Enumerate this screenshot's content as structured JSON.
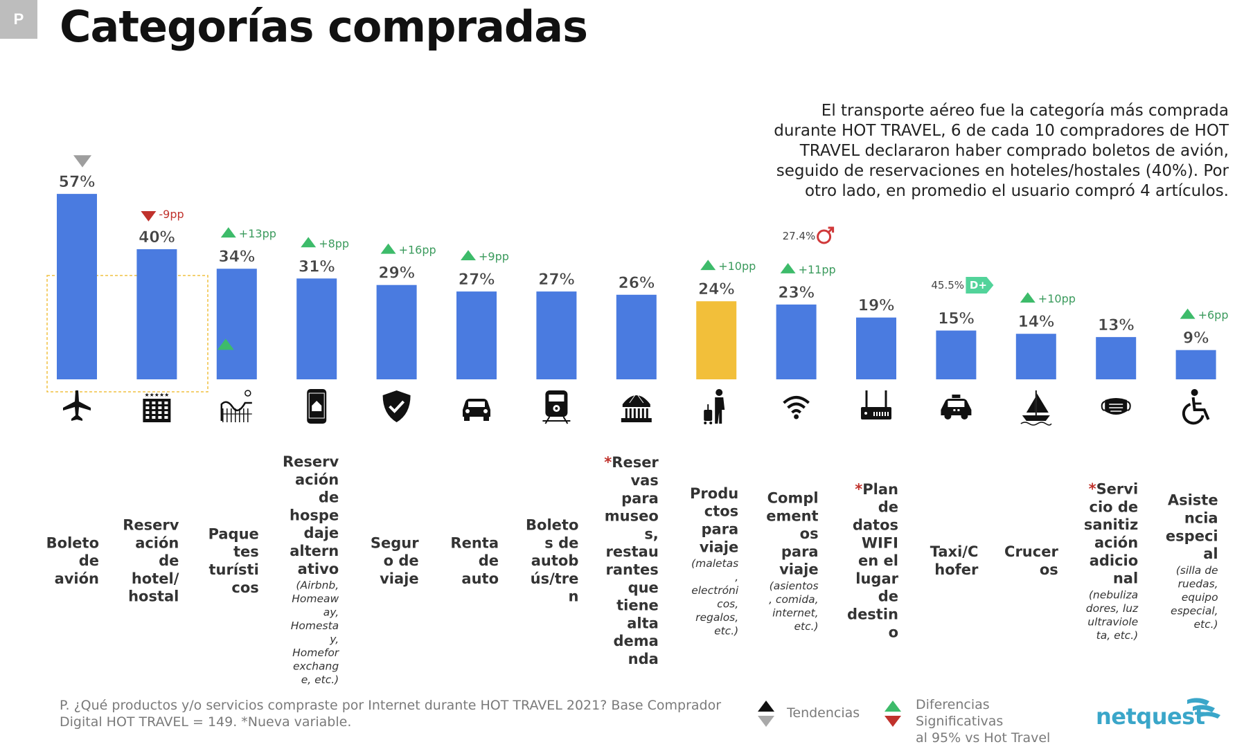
{
  "page": {
    "badge": "P",
    "title": "Categorías compradas",
    "description": "El transporte aéreo fue la categoría más comprada\ndurante HOT TRAVEL, 6 de cada 10 compradores de HOT\nTRAVEL declararon haber comprado boletos de avión,\nseguido de reservaciones en hoteles/hostales (40%). Por\notro lado, en promedio el usuario compró 4 artículos.",
    "footnote": "P. ¿Qué productos y/o servicios compraste por Internet durante HOT TRAVEL 2021? Base Comprador Digital HOT TRAVEL = 149. *Nueva variable.",
    "brand": "netquest"
  },
  "legend": {
    "trend_label": "Tendencias",
    "significance_label": "Diferencias\nSignificativas\nal 95% vs Hot Travel"
  },
  "colors": {
    "bar": "#4a7be0",
    "bar_highlight": "#f2bf3a",
    "up": "#3dbb6a",
    "down": "#c0322c",
    "trend_gray": "#9e9e9e",
    "profile_badge": "#52d39a",
    "male_symbol": "#d0393a",
    "highlight_box": "#f0c040"
  },
  "chart_data": {
    "type": "bar",
    "ylim": [
      0,
      60
    ],
    "categories": [
      "Boleto de avión",
      "Reservación de hotel/ hostal",
      "Paquetes turísticos",
      "Reservación de hospedaje alternativo",
      "Seguro de viaje",
      "Renta de auto",
      "Boletos de autobús/tren",
      "*Reservas para museos, restaurantes que tiene alta demanda",
      "Productos para viaje",
      "Complementos para viaje",
      "*Plan de datos WIFI en el lugar de destino",
      "Taxi/Chofer",
      "Cruceros",
      "*Servicio de sanitización adicional",
      "Asistencia especial"
    ],
    "label_lines": [
      [
        "Boleto",
        "de",
        "avión"
      ],
      [
        "Reserv",
        "ación",
        "de",
        "hotel/",
        "hostal"
      ],
      [
        "Paque",
        "tes",
        "turísti",
        "cos"
      ],
      [
        "Reserv",
        "ación",
        "de",
        "hospe",
        "daje",
        "altern",
        "ativo"
      ],
      [
        "Segur",
        "o de",
        "viaje"
      ],
      [
        "Renta",
        "de",
        "auto"
      ],
      [
        "Boleto",
        "s de",
        "autob",
        "ús/tre",
        "n"
      ],
      [
        "*Reser",
        "vas",
        "para",
        "museo",
        "s,",
        "restau",
        "rantes",
        "que",
        "tiene",
        "alta",
        "dema",
        "nda"
      ],
      [
        "Produ",
        "ctos",
        "para",
        "viaje"
      ],
      [
        "Compl",
        "ement",
        "os",
        "para",
        "viaje"
      ],
      [
        "*Plan",
        "de",
        "datos",
        "WIFI",
        "en el",
        "lugar",
        "de",
        "destin",
        "o"
      ],
      [
        "Taxi/C",
        "hofer"
      ],
      [
        "Crucer",
        "os"
      ],
      [
        "*Servi",
        "cio de",
        "sanitiz",
        "ación",
        "adicio",
        "nal"
      ],
      [
        "Asiste",
        "ncia",
        "especi",
        "al"
      ]
    ],
    "label_notes": [
      [],
      [],
      [],
      [
        "(Airbnb,",
        "Homeaw",
        "ay,",
        "Homesta",
        "y,",
        "Homefor",
        "exchang",
        "e, etc.)"
      ],
      [],
      [],
      [],
      [],
      [
        "(maletas",
        ",",
        "electróni",
        "cos,",
        "regalos,",
        "etc.)"
      ],
      [
        "(asientos",
        ", comida,",
        "internet,",
        "etc.)"
      ],
      [],
      [],
      [],
      [
        "(nebuliza",
        "dores, luz",
        "ultraviole",
        "ta, etc.)"
      ],
      [
        "(silla de",
        "ruedas,",
        "equipo",
        "especial,",
        "etc.)"
      ]
    ],
    "values": [
      57,
      40,
      34,
      31,
      29,
      27,
      27,
      26,
      24,
      23,
      19,
      15,
      14,
      13,
      9
    ],
    "value_labels": [
      "57%",
      "40%",
      "34%",
      "31%",
      "29%",
      "27%",
      "27%",
      "26%",
      "24%",
      "23%",
      "19%",
      "15%",
      "14%",
      "13%",
      "9%"
    ],
    "highlight_index": 8,
    "significance": [
      "",
      "-9pp",
      "+13pp",
      "+8pp",
      "+16pp",
      "+9pp",
      "",
      "",
      "+10pp",
      "+11pp",
      "",
      "",
      "+10pp",
      "",
      "+6pp"
    ],
    "significance_direction": [
      "",
      "down",
      "up",
      "up",
      "up",
      "up",
      "",
      "",
      "up",
      "up",
      "",
      "",
      "up",
      "",
      "up"
    ],
    "trend_markers": [
      "down",
      "",
      "up",
      "",
      "",
      "",
      "",
      "",
      "",
      "",
      "",
      "",
      "",
      "",
      ""
    ],
    "annotations": [
      {
        "bar": 9,
        "text": "27.4%",
        "icon": "male-symbol-icon"
      },
      {
        "bar": 11,
        "text": "45.5%",
        "badge": "D+"
      }
    ],
    "icons": [
      "airplane-icon",
      "hotel-icon",
      "roller-coaster-icon",
      "phone-home-icon",
      "shield-check-icon",
      "car-icon",
      "train-icon",
      "museum-icon",
      "traveler-luggage-icon",
      "wifi-icon",
      "router-icon",
      "taxi-icon",
      "sailboat-icon",
      "face-mask-icon",
      "wheelchair-icon"
    ]
  }
}
